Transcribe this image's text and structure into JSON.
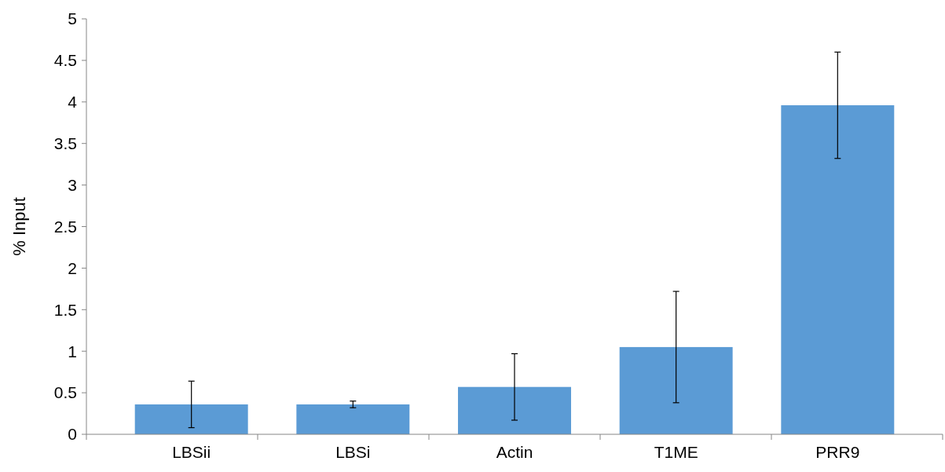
{
  "chart_data": {
    "type": "bar",
    "ylabel": "% Input",
    "categories": [
      "LBSii",
      "LBSi",
      "Actin",
      "T1ME",
      "PRR9"
    ],
    "values": [
      0.36,
      0.36,
      0.57,
      1.05,
      3.96
    ],
    "errors": [
      0.28,
      0.04,
      0.4,
      0.67,
      0.64
    ],
    "color": "#5b9bd5",
    "ylim": [
      0,
      5
    ],
    "yticks": [
      0,
      0.5,
      1,
      1.5,
      2,
      2.5,
      3,
      3.5,
      4,
      4.5,
      5
    ],
    "grid": false
  }
}
